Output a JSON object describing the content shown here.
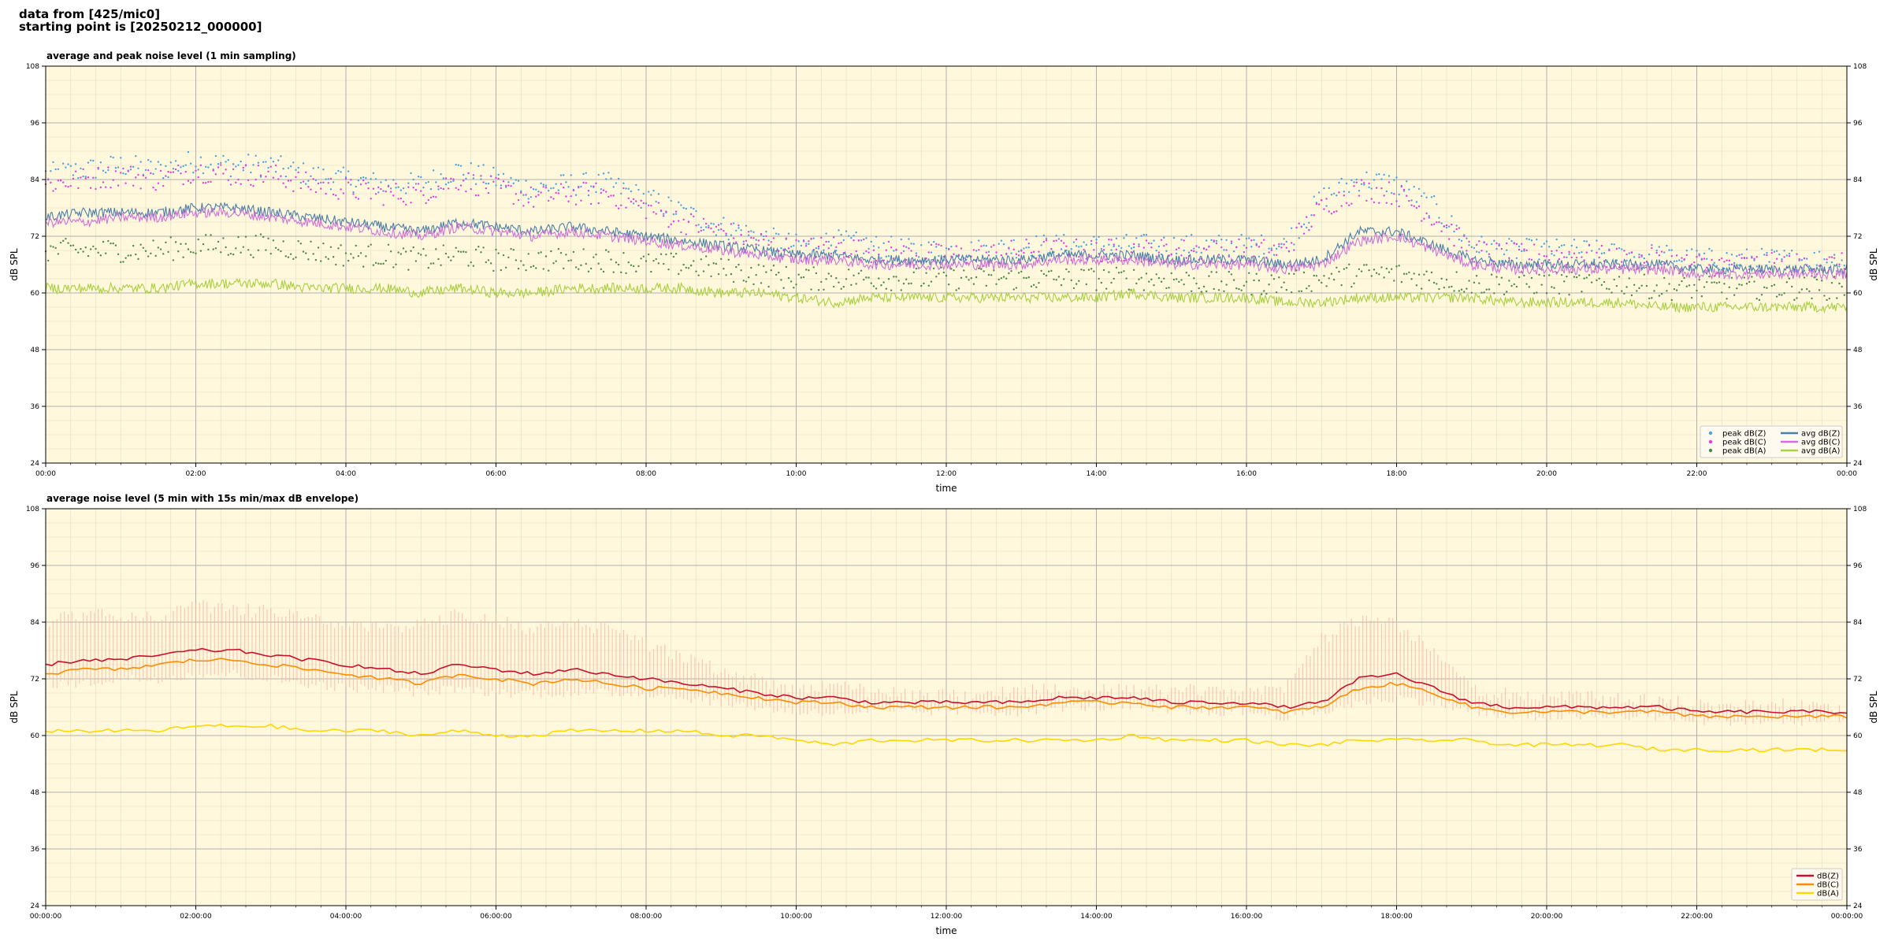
{
  "header": {
    "line1": "data from [425/mic0]",
    "line2": "starting point is [20250212_000000]"
  },
  "chart_data": [
    {
      "type": "line",
      "title": "average and peak noise level (1 min sampling)",
      "xlabel": "time",
      "ylabel": "dB SPL",
      "xlim": [
        "00:00",
        "24:00"
      ],
      "ylim": [
        24,
        108
      ],
      "yticks": [
        24,
        36,
        48,
        60,
        72,
        84,
        96,
        108
      ],
      "xtick_labels": [
        "00:00",
        "02:00",
        "04:00",
        "06:00",
        "08:00",
        "10:00",
        "12:00",
        "14:00",
        "16:00",
        "18:00",
        "20:00",
        "22:00",
        "00:00"
      ],
      "grid": true,
      "legend_position": "bottom-right",
      "legend": [
        "peak dB(Z)",
        "peak dB(C)",
        "peak dB(A)",
        "avg dB(Z)",
        "avg dB(C)",
        "avg dB(A)"
      ],
      "colors": {
        "peak_z": "#4aa3e0",
        "peak_c": "#e040e0",
        "peak_a": "#4a8a4a",
        "avg_z": "#4a7fa8",
        "avg_c": "#d070d8",
        "avg_a": "#a8d040",
        "background": "#fff8dc"
      },
      "x_hours": [
        0,
        0.5,
        1,
        1.5,
        2,
        2.5,
        3,
        3.5,
        4,
        4.5,
        5,
        5.5,
        6,
        6.5,
        7,
        7.5,
        8,
        8.5,
        9,
        9.5,
        10,
        10.5,
        11,
        11.5,
        12,
        12.5,
        13,
        13.5,
        14,
        14.5,
        15,
        15.5,
        16,
        16.5,
        17,
        17.5,
        18,
        18.5,
        19,
        19.5,
        20,
        20.5,
        21,
        21.5,
        22,
        22.5,
        23,
        23.5,
        24
      ],
      "series": [
        {
          "name": "avg dB(Z)",
          "style": "line",
          "values": [
            76,
            77,
            77,
            77,
            78,
            78,
            77,
            76,
            75,
            74,
            73,
            75,
            74,
            73,
            74,
            73,
            72,
            71,
            70,
            69,
            68,
            68,
            67,
            67,
            67,
            67,
            67,
            68,
            68,
            68,
            67,
            67,
            67,
            66,
            67,
            73,
            73,
            70,
            67,
            66,
            66,
            66,
            66,
            66,
            65,
            65,
            65,
            65,
            65
          ]
        },
        {
          "name": "avg dB(C)",
          "style": "line",
          "values": [
            75,
            75,
            76,
            76,
            77,
            77,
            76,
            75,
            74,
            73,
            72,
            74,
            73,
            72,
            73,
            72,
            71,
            70,
            69,
            68,
            67,
            67,
            66,
            66,
            66,
            66,
            66,
            67,
            67,
            67,
            66,
            66,
            66,
            65,
            66,
            71,
            72,
            69,
            66,
            65,
            65,
            65,
            65,
            65,
            64,
            64,
            64,
            64,
            64
          ]
        },
        {
          "name": "avg dB(A)",
          "style": "line",
          "values": [
            61,
            61,
            61,
            61,
            62,
            62,
            62,
            61,
            61,
            61,
            60,
            61,
            60,
            60,
            61,
            61,
            61,
            61,
            60,
            60,
            59,
            58,
            59,
            59,
            59,
            59,
            59,
            59,
            59,
            60,
            59,
            59,
            59,
            58,
            58,
            59,
            59,
            59,
            59,
            58,
            58,
            58,
            58,
            57,
            57,
            57,
            57,
            57,
            57
          ]
        },
        {
          "name": "peak dB(Z)",
          "style": "points",
          "values": [
            85,
            86,
            87,
            86,
            88,
            87,
            87,
            85,
            84,
            83,
            83,
            86,
            84,
            82,
            83,
            83,
            80,
            77,
            74,
            72,
            70,
            71,
            70,
            69,
            69,
            69,
            70,
            70,
            70,
            70,
            70,
            70,
            70,
            70,
            80,
            84,
            83,
            78,
            70,
            69,
            69,
            69,
            68,
            68,
            67,
            67,
            67,
            67,
            67
          ]
        },
        {
          "name": "peak dB(C)",
          "style": "points",
          "values": [
            83,
            84,
            85,
            84,
            86,
            85,
            85,
            83,
            82,
            81,
            81,
            84,
            82,
            80,
            81,
            81,
            78,
            75,
            73,
            71,
            69,
            70,
            69,
            68,
            68,
            68,
            69,
            69,
            69,
            69,
            69,
            69,
            69,
            69,
            78,
            82,
            81,
            76,
            69,
            68,
            68,
            68,
            67,
            67,
            66,
            66,
            66,
            66,
            66
          ]
        },
        {
          "name": "peak dB(A)",
          "style": "points",
          "values": [
            69,
            69,
            69,
            69,
            70,
            70,
            70,
            69,
            68,
            68,
            67,
            68,
            67,
            67,
            67,
            67,
            66,
            66,
            65,
            64,
            63,
            63,
            63,
            63,
            63,
            63,
            63,
            63,
            63,
            63,
            63,
            62,
            62,
            62,
            63,
            64,
            64,
            63,
            62,
            62,
            62,
            62,
            62,
            61,
            61,
            61,
            61,
            61,
            61
          ]
        }
      ]
    },
    {
      "type": "line",
      "title": "average noise level (5 min with 15s min/max dB envelope)",
      "xlabel": "time",
      "ylabel": "dB SPL",
      "xlim": [
        "00:00:00",
        "24:00:00"
      ],
      "ylim": [
        24,
        108
      ],
      "yticks": [
        24,
        36,
        48,
        60,
        72,
        84,
        96,
        108
      ],
      "xtick_labels": [
        "00:00:00",
        "02:00:00",
        "04:00:00",
        "06:00:00",
        "08:00:00",
        "10:00:00",
        "12:00:00",
        "14:00:00",
        "16:00:00",
        "18:00:00",
        "20:00:00",
        "22:00:00",
        "00:00:00"
      ],
      "grid": true,
      "legend_position": "bottom-right",
      "legend": [
        "dB(Z)",
        "dB(C)",
        "dB(A)"
      ],
      "colors": {
        "z": "#c8102e",
        "c": "#ff8c00",
        "a": "#ffd700",
        "envelope": "#f4b8a8",
        "background": "#fff8dc"
      },
      "x_hours": [
        0,
        0.5,
        1,
        1.5,
        2,
        2.5,
        3,
        3.5,
        4,
        4.5,
        5,
        5.5,
        6,
        6.5,
        7,
        7.5,
        8,
        8.5,
        9,
        9.5,
        10,
        10.5,
        11,
        11.5,
        12,
        12.5,
        13,
        13.5,
        14,
        14.5,
        15,
        15.5,
        16,
        16.5,
        17,
        17.5,
        18,
        18.5,
        19,
        19.5,
        20,
        20.5,
        21,
        21.5,
        22,
        22.5,
        23,
        23.5,
        24
      ],
      "envelope": {
        "name": "15s min/max envelope",
        "upper": [
          86,
          87,
          87,
          86,
          89,
          88,
          88,
          86,
          85,
          84,
          85,
          87,
          86,
          84,
          85,
          84,
          81,
          78,
          75,
          73,
          71,
          72,
          71,
          70,
          70,
          70,
          71,
          71,
          71,
          71,
          71,
          71,
          71,
          71,
          82,
          86,
          85,
          80,
          71,
          70,
          70,
          70,
          69,
          69,
          68,
          68,
          68,
          68,
          68
        ],
        "lower": [
          70,
          70,
          71,
          71,
          72,
          72,
          71,
          70,
          69,
          69,
          68,
          69,
          68,
          68,
          68,
          68,
          68,
          67,
          66,
          65,
          64,
          64,
          64,
          64,
          64,
          64,
          64,
          65,
          65,
          65,
          64,
          64,
          64,
          63,
          64,
          66,
          67,
          66,
          64,
          63,
          63,
          63,
          63,
          63,
          62,
          62,
          62,
          62,
          62
        ]
      },
      "series": [
        {
          "name": "dB(Z)",
          "values": [
            75,
            76,
            76,
            77,
            78,
            78,
            77,
            76,
            75,
            74,
            73,
            75,
            74,
            73,
            74,
            73,
            72,
            71,
            70,
            69,
            68,
            68,
            67,
            67,
            67,
            67,
            67,
            68,
            68,
            68,
            67,
            67,
            67,
            66,
            67,
            72,
            73,
            70,
            67,
            66,
            66,
            66,
            66,
            66,
            65,
            65,
            65,
            65,
            65
          ]
        },
        {
          "name": "dB(C)",
          "values": [
            73,
            74,
            74,
            75,
            76,
            76,
            75,
            74,
            73,
            72,
            71,
            73,
            72,
            71,
            72,
            71,
            70,
            70,
            69,
            68,
            67,
            67,
            66,
            66,
            66,
            66,
            66,
            67,
            67,
            67,
            66,
            66,
            66,
            65,
            66,
            70,
            71,
            69,
            66,
            65,
            65,
            65,
            65,
            65,
            64,
            64,
            64,
            64,
            64
          ]
        },
        {
          "name": "dB(A)",
          "values": [
            61,
            61,
            61,
            61,
            62,
            62,
            62,
            61,
            61,
            61,
            60,
            61,
            60,
            60,
            61,
            61,
            61,
            61,
            60,
            60,
            59,
            58,
            59,
            59,
            59,
            59,
            59,
            59,
            59,
            60,
            59,
            59,
            59,
            58,
            58,
            59,
            59,
            59,
            59,
            58,
            58,
            58,
            58,
            57,
            57,
            57,
            57,
            57,
            57
          ]
        }
      ]
    }
  ]
}
